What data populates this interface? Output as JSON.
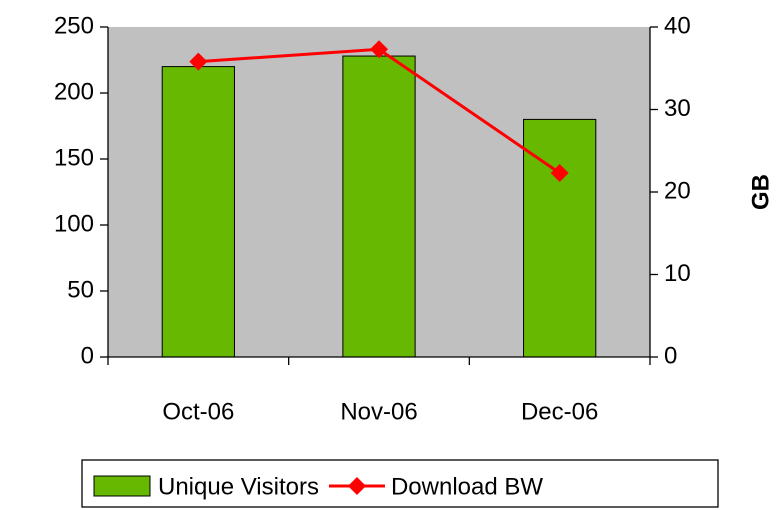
{
  "chart_data": {
    "type": "bar",
    "categories": [
      "Oct-06",
      "Nov-06",
      "Dec-06"
    ],
    "series": [
      {
        "name": "Unique Visitors",
        "type": "bar",
        "color": "#66b800",
        "values": [
          220,
          228,
          180
        ]
      },
      {
        "name": "Download BW",
        "type": "line",
        "color": "#ff0000",
        "axis": "y2",
        "values": [
          35.8,
          37.3,
          22.3
        ]
      }
    ],
    "ylim": [
      0,
      250
    ],
    "yticks": [
      0,
      50,
      100,
      150,
      200,
      250
    ],
    "y2lim": [
      0,
      40
    ],
    "y2ticks": [
      0,
      10,
      20,
      30,
      40
    ],
    "y2label": "GB",
    "plot_background": "#c0c0c0",
    "legend": "bottom"
  }
}
